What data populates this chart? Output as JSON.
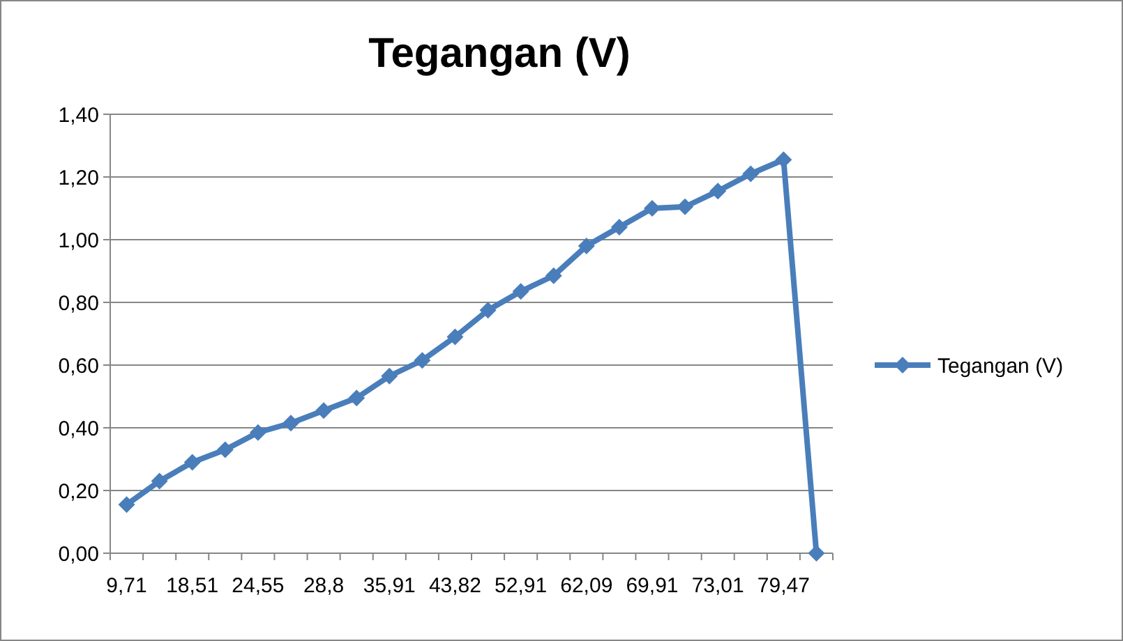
{
  "chart_data": {
    "type": "line",
    "title": "Tegangan (V)",
    "categories": [
      "9,71",
      null,
      "18,51",
      null,
      "24,55",
      null,
      "28,8",
      null,
      "35,91",
      null,
      "43,82",
      null,
      "52,91",
      null,
      "62,09",
      null,
      "69,91",
      null,
      "73,01",
      null,
      "79,47",
      null
    ],
    "series": [
      {
        "name": "Tegangan (V)",
        "color": "#4a7ebb",
        "values": [
          0.155,
          0.23,
          0.29,
          0.33,
          0.385,
          0.415,
          0.455,
          0.495,
          0.565,
          0.615,
          0.69,
          0.775,
          0.835,
          0.885,
          0.98,
          1.04,
          1.1,
          1.105,
          1.155,
          1.21,
          1.255,
          0
        ]
      }
    ],
    "ylim": [
      0,
      1.4
    ],
    "yticks": [
      {
        "value": 0,
        "label": "0,00"
      },
      {
        "value": 0.2,
        "label": "0,20"
      },
      {
        "value": 0.4,
        "label": "0,40"
      },
      {
        "value": 0.6,
        "label": "0,60"
      },
      {
        "value": 0.8,
        "label": "0,80"
      },
      {
        "value": 1,
        "label": "1,00"
      },
      {
        "value": 1.2,
        "label": "1,20"
      },
      {
        "value": 1.4,
        "label": "1,40"
      }
    ],
    "grid": "y",
    "legend": "right",
    "marker": "diamond",
    "line_style": "solid"
  }
}
